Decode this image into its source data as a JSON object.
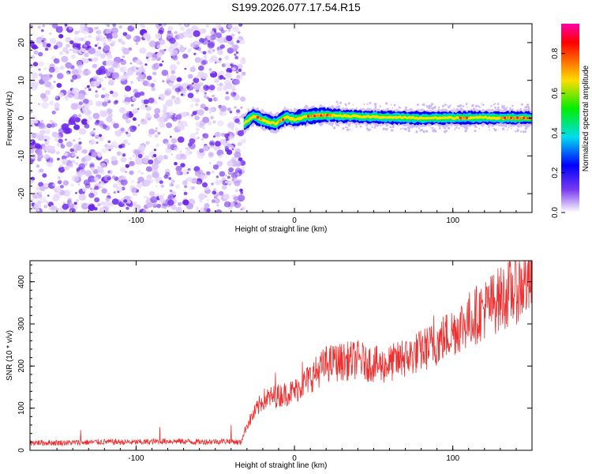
{
  "title": "S199.2026.077.17.54.R15",
  "colors": {
    "snr_line": "#ee3030",
    "noise_purple": "#7a3cf0",
    "axis": "#000000"
  },
  "chart_data": [
    {
      "type": "heatmap",
      "xlabel": "Height of straight line (km)",
      "ylabel": "Frequency (Hz)",
      "xlim": [
        -167,
        150
      ],
      "ylim": [
        -25,
        25
      ],
      "x_ticks": [
        -100,
        0,
        100
      ],
      "y_ticks": [
        -20,
        -10,
        0,
        10,
        20
      ],
      "noise_region_x": [
        -167,
        -32
      ],
      "signal_start_x": -32,
      "signal_center_hz": [
        {
          "x": -32,
          "y": -1.5
        },
        {
          "x": -26,
          "y": 0.5
        },
        {
          "x": -20,
          "y": -0.5
        },
        {
          "x": -12,
          "y": -1.5
        },
        {
          "x": -6,
          "y": 0.2
        },
        {
          "x": 0,
          "y": -0.3
        },
        {
          "x": 8,
          "y": 0.5
        },
        {
          "x": 20,
          "y": 0.8
        },
        {
          "x": 40,
          "y": 0.4
        },
        {
          "x": 80,
          "y": 0.0
        },
        {
          "x": 120,
          "y": 0.1
        },
        {
          "x": 150,
          "y": 0.0
        }
      ],
      "colorbar": {
        "label": "Normalized spectral amplitude",
        "range": [
          0,
          0.95
        ],
        "ticks": [
          "0.0",
          "0.2",
          "0.4",
          "0.6",
          "0.8"
        ],
        "tick_values": [
          0,
          0.2,
          0.4,
          0.6,
          0.8
        ],
        "colors": [
          "#ff00ff",
          "#ff0000",
          "#ffcc00",
          "#00ee00",
          "#00ddff",
          "#0000ff",
          "#6600cc",
          "#ffffff"
        ]
      }
    },
    {
      "type": "line",
      "xlabel": "Height of straight line (km)",
      "ylabel": "SNR (10 * v/v)",
      "xlim": [
        -167,
        150
      ],
      "ylim": [
        0,
        450
      ],
      "x_ticks": [
        -100,
        0,
        100
      ],
      "y_ticks": [
        0,
        100,
        200,
        300,
        400
      ],
      "series": [
        {
          "trend": [
            {
              "x": -167,
              "y": 18
            },
            {
              "x": -140,
              "y": 18
            },
            {
              "x": -120,
              "y": 20
            },
            {
              "x": -100,
              "y": 19
            },
            {
              "x": -80,
              "y": 22
            },
            {
              "x": -60,
              "y": 20
            },
            {
              "x": -40,
              "y": 22
            },
            {
              "x": -34,
              "y": 18
            },
            {
              "x": -30,
              "y": 60
            },
            {
              "x": -20,
              "y": 120
            },
            {
              "x": 0,
              "y": 140
            },
            {
              "x": 20,
              "y": 205
            },
            {
              "x": 40,
              "y": 215
            },
            {
              "x": 55,
              "y": 200
            },
            {
              "x": 70,
              "y": 218
            },
            {
              "x": 90,
              "y": 255
            },
            {
              "x": 110,
              "y": 310
            },
            {
              "x": 130,
              "y": 360
            },
            {
              "x": 150,
              "y": 405
            }
          ],
          "spikes": [
            {
              "x": -135,
              "y": 48
            },
            {
              "x": -85,
              "y": 55
            },
            {
              "x": -40,
              "y": 60
            },
            {
              "x": -12,
              "y": 185
            },
            {
              "x": 5,
              "y": 210
            },
            {
              "x": 25,
              "y": 240
            },
            {
              "x": 45,
              "y": 245
            },
            {
              "x": 68,
              "y": 260
            },
            {
              "x": 88,
              "y": 320
            },
            {
              "x": 110,
              "y": 360
            },
            {
              "x": 128,
              "y": 395
            },
            {
              "x": 147,
              "y": 445
            }
          ]
        }
      ]
    }
  ]
}
